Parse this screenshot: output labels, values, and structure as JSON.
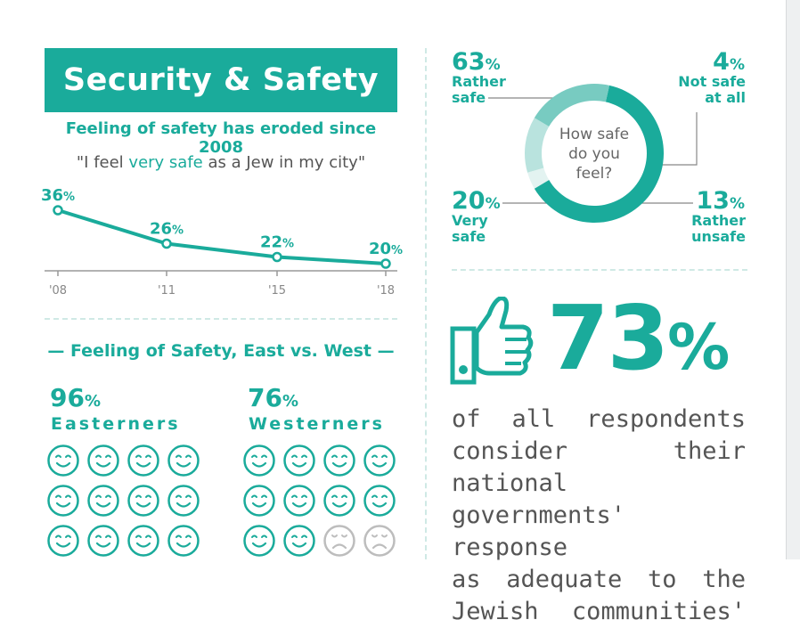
{
  "header": {
    "title": "Security & Safety"
  },
  "trend": {
    "subtitle": "Feeling of safety has eroded since 2008",
    "quote_pre": "\"I feel ",
    "quote_hl": "very safe",
    "quote_post": " as a Jew in my city\""
  },
  "chart_data": {
    "type": "line",
    "title": "Feeling of safety has eroded since 2008",
    "categories": [
      "'08",
      "'11",
      "'15",
      "'18"
    ],
    "series": [
      {
        "name": "I feel very safe as a Jew in my city",
        "values": [
          36,
          26,
          22,
          20
        ]
      }
    ],
    "unit": "%",
    "color": "#1aab9b"
  },
  "east_west": {
    "heading": "— Feeling of Safety, East vs. West —",
    "groups": [
      {
        "pct": "96",
        "unit": "%",
        "name": "Easterners",
        "happy": 12,
        "sad": 0
      },
      {
        "pct": "76",
        "unit": "%",
        "name": "Westerners",
        "happy": 10,
        "sad": 2
      }
    ]
  },
  "donut": {
    "center": [
      "How safe",
      "do you",
      "feel?"
    ],
    "unit": "%",
    "segments": [
      {
        "pct": "63",
        "label": [
          "Rather",
          "safe"
        ],
        "value": 63,
        "color": "#1aab9b"
      },
      {
        "pct": "4",
        "label": [
          "Not safe",
          "at all"
        ],
        "value": 4,
        "color": "#e3f3f1"
      },
      {
        "pct": "13",
        "label": [
          "Rather",
          "unsafe"
        ],
        "value": 13,
        "color": "#b9e3de"
      },
      {
        "pct": "20",
        "label": [
          "Very",
          "safe"
        ],
        "value": 20,
        "color": "#78cbc1"
      }
    ]
  },
  "stat": {
    "value": "73",
    "unit": "%",
    "icon": "thumbs-up-icon",
    "lines": [
      "of all respondents",
      "consider their national",
      "governments' response",
      "as adequate to the",
      "Jewish communities'"
    ]
  }
}
